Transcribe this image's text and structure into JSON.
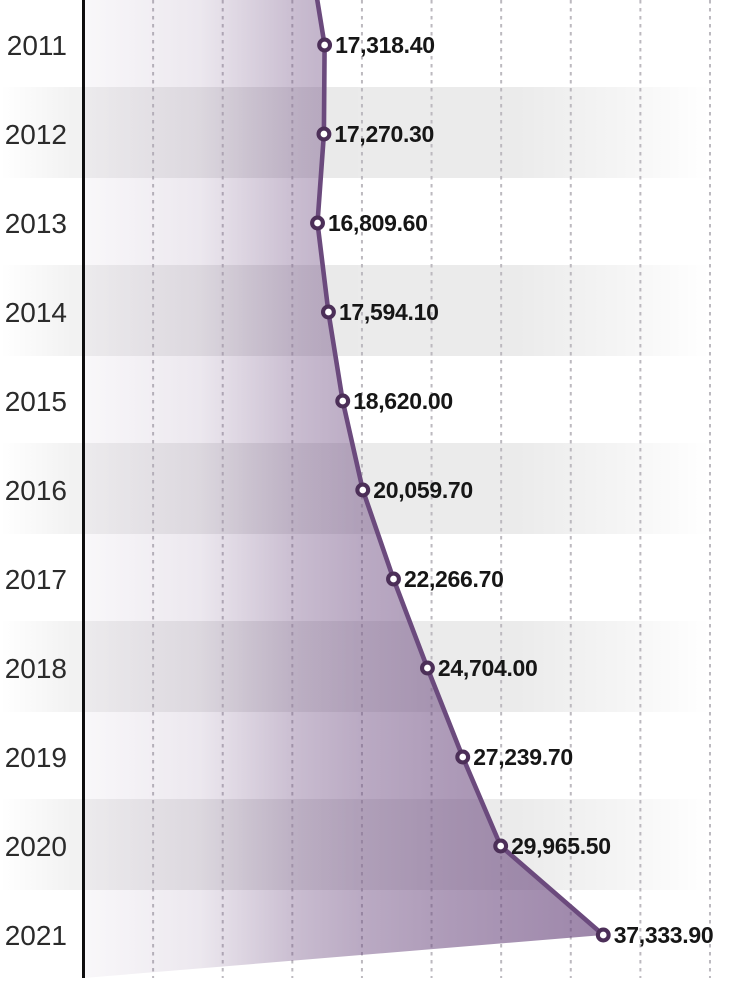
{
  "chart_data": {
    "type": "area",
    "title": "",
    "xlabel": "",
    "ylabel": "",
    "orientation": "years on vertical axis (top to bottom), values on horizontal axis",
    "categories": [
      "2011",
      "2012",
      "2013",
      "2014",
      "2015",
      "2016",
      "2017",
      "2018",
      "2019",
      "2020",
      "2021"
    ],
    "values": [
      17318.4,
      17270.3,
      16809.6,
      17594.1,
      18620.0,
      20059.7,
      22266.7,
      24704.0,
      27239.7,
      29965.5,
      37333.9
    ],
    "value_labels": [
      "17,318.40",
      "17,270.30",
      "16,809.60",
      "17,594.10",
      "18,620.00",
      "20,059.70",
      "22,266.70",
      "24,704.00",
      "27,239.70",
      "29,965.50",
      "37,333.90"
    ],
    "value_axis": {
      "min": 0,
      "visible_max": 47900,
      "gridline_step": 5000,
      "gridline_style": "dashed vertical lines",
      "baseline": "solid black vertical line at 0 (left)"
    },
    "shaded_row_years": [
      "2012",
      "2014",
      "2016",
      "2018",
      "2020"
    ],
    "legend": "none",
    "line_cut_off_at_top": true,
    "colors": {
      "background": "#ffffff",
      "line": "#6b4a7d",
      "marker_ring": "#4c2f58",
      "marker_fill": "#ffffff",
      "area_base": "#6d4b80",
      "axis_line": "#0c0c0c",
      "gridline": "#bcb9bf",
      "row_band_gray": "#ececec",
      "value_label_text": "#161616",
      "year_label_text": "#2b2b2b"
    }
  }
}
